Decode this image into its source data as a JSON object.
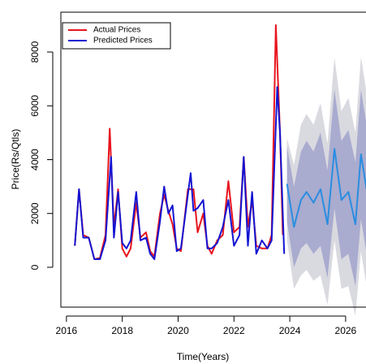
{
  "chart_data": {
    "type": "line",
    "xlabel": "Time(Years)",
    "ylabel": "Price(Rs/Qtls)",
    "xlim": [
      2015.8,
      2026.73
    ],
    "ylim": [
      -1480,
      9480
    ],
    "xticks": [
      2016,
      2018,
      2020,
      2022,
      2024,
      2026
    ],
    "yticks": [
      0,
      2000,
      4000,
      6000,
      8000
    ],
    "legend": "top-left",
    "series": [
      {
        "name": "Actual Prices",
        "color": "#e8141e",
        "x": [
          2016.3,
          2016.45,
          2016.6,
          2016.8,
          2017.0,
          2017.2,
          2017.4,
          2017.55,
          2017.7,
          2017.85,
          2018.0,
          2018.15,
          2018.3,
          2018.5,
          2018.65,
          2018.85,
          2019.0,
          2019.15,
          2019.35,
          2019.5,
          2019.65,
          2019.8,
          2019.95,
          2020.1,
          2020.35,
          2020.55,
          2020.7,
          2020.9,
          2021.05,
          2021.2,
          2021.4,
          2021.6,
          2021.8,
          2022.0,
          2022.2,
          2022.35,
          2022.5,
          2022.65,
          2022.8,
          2023.0,
          2023.2,
          2023.35,
          2023.5,
          2023.65,
          2023.75
        ],
        "values": [
          800,
          2900,
          1200,
          1100,
          300,
          350,
          1200,
          5150,
          1500,
          2900,
          700,
          400,
          700,
          2400,
          1100,
          1300,
          600,
          400,
          2000,
          2700,
          2100,
          1600,
          700,
          600,
          2900,
          2900,
          1300,
          2000,
          800,
          500,
          1000,
          1200,
          3200,
          1300,
          1500,
          4100,
          1500,
          2500,
          800,
          700,
          700,
          1200,
          9000,
          5000,
          1200
        ]
      },
      {
        "name": "Predicted Prices",
        "color": "#1414d2",
        "x": [
          2016.3,
          2016.45,
          2016.6,
          2016.8,
          2017.0,
          2017.2,
          2017.4,
          2017.6,
          2017.7,
          2017.85,
          2018.0,
          2018.15,
          2018.3,
          2018.5,
          2018.65,
          2018.85,
          2019.0,
          2019.15,
          2019.35,
          2019.5,
          2019.65,
          2019.8,
          2019.95,
          2020.1,
          2020.45,
          2020.55,
          2020.7,
          2020.9,
          2021.05,
          2021.2,
          2021.4,
          2021.6,
          2021.8,
          2022.0,
          2022.2,
          2022.35,
          2022.5,
          2022.65,
          2022.8,
          2023.0,
          2023.2,
          2023.35,
          2023.55,
          2023.65,
          2023.8
        ],
        "values": [
          800,
          2900,
          1100,
          1100,
          300,
          300,
          1000,
          4100,
          1100,
          2800,
          900,
          700,
          1000,
          2800,
          1000,
          1100,
          500,
          300,
          1700,
          3000,
          2000,
          2300,
          600,
          700,
          3500,
          2100,
          2200,
          2500,
          700,
          700,
          900,
          1500,
          2500,
          800,
          1200,
          4100,
          800,
          2800,
          500,
          1000,
          700,
          1000,
          6700,
          5000,
          500
        ]
      }
    ],
    "forecast": {
      "color": "#2a8de0",
      "x": [
        2023.9,
        2024.15,
        2024.4,
        2024.6,
        2024.85,
        2025.1,
        2025.35,
        2025.6,
        2025.85,
        2026.1,
        2026.35,
        2026.55,
        2026.75
      ],
      "values": [
        3100,
        1500,
        2500,
        2800,
        2400,
        2900,
        1600,
        4400,
        2500,
        2800,
        1600,
        4200,
        2900
      ],
      "bands": [
        {
          "color": "#d9d9e0",
          "lower": [
            1000,
            -800,
            -300,
            -100,
            -500,
            -300,
            -1400,
            1000,
            -800,
            -700,
            -1800,
            600,
            -700
          ],
          "upper": [
            4800,
            3800,
            5300,
            5700,
            5300,
            6100,
            4600,
            7800,
            5800,
            6300,
            5000,
            7800,
            6500
          ]
        },
        {
          "color": "#a9abcf",
          "lower": [
            1700,
            0,
            700,
            900,
            500,
            800,
            -400,
            2200,
            300,
            500,
            -700,
            1800,
            500
          ],
          "upper": [
            4500,
            3000,
            4300,
            4700,
            4300,
            5000,
            3600,
            6600,
            4700,
            5100,
            3900,
            6600,
            5300
          ]
        }
      ]
    }
  }
}
